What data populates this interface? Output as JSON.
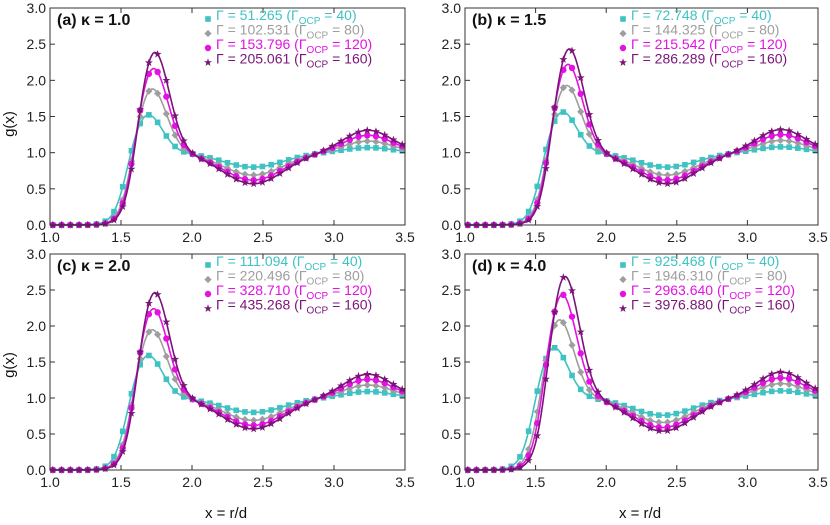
{
  "figure": {
    "ylabel": "g(x)",
    "xlabel": "x = r/d",
    "colors": [
      "#3EC2C2",
      "#9E9E9E",
      "#E312E3",
      "#7A1478"
    ],
    "markers": [
      "square",
      "diamond",
      "circle",
      "star"
    ]
  },
  "chart_data": [
    {
      "type": "line",
      "title": "(a) κ = 1.0",
      "xlim": [
        1.0,
        3.5
      ],
      "ylim": [
        0.0,
        3.0
      ],
      "xticks": [
        "1.0",
        "1.5",
        "2.0",
        "2.5",
        "3.0",
        "3.5"
      ],
      "yticks": [
        "0.0",
        "0.5",
        "1.0",
        "1.5",
        "2.0",
        "2.5",
        "3.0"
      ],
      "legend_position": "top-right",
      "series": [
        {
          "name": "Γ = 51.265 (Γ_OCP = 40)",
          "gamma": "51.265",
          "ocp": "40",
          "peak_x": 1.68,
          "peak_y": 1.56,
          "min_x": 2.43,
          "min_y": 0.8,
          "second_peak_y": 1.07
        },
        {
          "name": "Γ = 102.531 (Γ_OCP = 80)",
          "gamma": "102.531",
          "ocp": "80",
          "peak_x": 1.71,
          "peak_y": 1.93,
          "min_x": 2.43,
          "min_y": 0.69,
          "second_peak_y": 1.16
        },
        {
          "name": "Γ = 153.796 (Γ_OCP = 120)",
          "gamma": "153.796",
          "ocp": "120",
          "peak_x": 1.72,
          "peak_y": 2.22,
          "min_x": 2.43,
          "min_y": 0.62,
          "second_peak_y": 1.24
        },
        {
          "name": "Γ = 205.061 (Γ_OCP = 160)",
          "gamma": "205.061",
          "ocp": "160",
          "peak_x": 1.73,
          "peak_y": 2.45,
          "min_x": 2.43,
          "min_y": 0.57,
          "second_peak_y": 1.31
        }
      ]
    },
    {
      "type": "line",
      "title": "(b) κ = 1.5",
      "xlim": [
        1.0,
        3.5
      ],
      "ylim": [
        0.0,
        3.0
      ],
      "xticks": [
        "1.0",
        "1.5",
        "2.0",
        "2.5",
        "3.0",
        "3.5"
      ],
      "yticks": [
        "0.0",
        "0.5",
        "1.0",
        "1.5",
        "2.0",
        "2.5",
        "3.0"
      ],
      "legend_position": "top-right",
      "series": [
        {
          "name": "Γ = 72.748 (Γ_OCP = 40)",
          "gamma": "72.748",
          "ocp": "40",
          "peak_x": 1.68,
          "peak_y": 1.6,
          "min_x": 2.43,
          "min_y": 0.8,
          "second_peak_y": 1.08
        },
        {
          "name": "Γ = 144.325 (Γ_OCP = 80)",
          "gamma": "144.325",
          "ocp": "80",
          "peak_x": 1.71,
          "peak_y": 1.98,
          "min_x": 2.43,
          "min_y": 0.69,
          "second_peak_y": 1.17
        },
        {
          "name": "Γ = 215.542 (Γ_OCP = 120)",
          "gamma": "215.542",
          "ocp": "120",
          "peak_x": 1.72,
          "peak_y": 2.28,
          "min_x": 2.43,
          "min_y": 0.62,
          "second_peak_y": 1.25
        },
        {
          "name": "Γ = 286.289 (Γ_OCP = 160)",
          "gamma": "286.289",
          "ocp": "160",
          "peak_x": 1.73,
          "peak_y": 2.5,
          "min_x": 2.43,
          "min_y": 0.57,
          "second_peak_y": 1.32
        }
      ]
    },
    {
      "type": "line",
      "title": "(c) κ = 2.0",
      "xlim": [
        1.0,
        3.5
      ],
      "ylim": [
        0.0,
        3.0
      ],
      "xticks": [
        "1.0",
        "1.5",
        "2.0",
        "2.5",
        "3.0",
        "3.5"
      ],
      "yticks": [
        "0.0",
        "0.5",
        "1.0",
        "1.5",
        "2.0",
        "2.5",
        "3.0"
      ],
      "legend_position": "top-right",
      "series": [
        {
          "name": "Γ = 111.094 (Γ_OCP = 40)",
          "gamma": "111.094",
          "ocp": "40",
          "peak_x": 1.68,
          "peak_y": 1.63,
          "min_x": 2.43,
          "min_y": 0.8,
          "second_peak_y": 1.09
        },
        {
          "name": "Γ = 220.496 (Γ_OCP = 80)",
          "gamma": "220.496",
          "ocp": "80",
          "peak_x": 1.71,
          "peak_y": 2.0,
          "min_x": 2.43,
          "min_y": 0.69,
          "second_peak_y": 1.18
        },
        {
          "name": "Γ = 328.710 (Γ_OCP = 120)",
          "gamma": "328.710",
          "ocp": "120",
          "peak_x": 1.72,
          "peak_y": 2.3,
          "min_x": 2.43,
          "min_y": 0.62,
          "second_peak_y": 1.26
        },
        {
          "name": "Γ = 435.268 (Γ_OCP = 160)",
          "gamma": "435.268",
          "ocp": "160",
          "peak_x": 1.73,
          "peak_y": 2.53,
          "min_x": 2.43,
          "min_y": 0.57,
          "second_peak_y": 1.33
        }
      ]
    },
    {
      "type": "line",
      "title": "(d) κ = 4.0",
      "xlim": [
        1.0,
        3.5
      ],
      "ylim": [
        0.0,
        3.0
      ],
      "xticks": [
        "1.0",
        "1.5",
        "2.0",
        "2.5",
        "3.0",
        "3.5"
      ],
      "yticks": [
        "0.0",
        "0.5",
        "1.0",
        "1.5",
        "2.0",
        "2.5",
        "3.0"
      ],
      "legend_position": "top-right",
      "series": [
        {
          "name": "Γ = 925.468 (Γ_OCP = 40)",
          "gamma": "925.468",
          "ocp": "40",
          "peak_x": 1.62,
          "peak_y": 1.74,
          "min_x": 2.4,
          "min_y": 0.76,
          "second_peak_y": 1.1
        },
        {
          "name": "Γ = 1946.310 (Γ_OCP = 80)",
          "gamma": "1946.310",
          "ocp": "80",
          "peak_x": 1.66,
          "peak_y": 2.14,
          "min_x": 2.4,
          "min_y": 0.66,
          "second_peak_y": 1.2
        },
        {
          "name": "Γ = 2963.640 (Γ_OCP = 120)",
          "gamma": "2963.640",
          "ocp": "120",
          "peak_x": 1.68,
          "peak_y": 2.5,
          "min_x": 2.4,
          "min_y": 0.59,
          "second_peak_y": 1.28
        },
        {
          "name": "Γ = 3976.880 (Γ_OCP = 160)",
          "gamma": "3976.880",
          "ocp": "160",
          "peak_x": 1.7,
          "peak_y": 2.76,
          "min_x": 2.4,
          "min_y": 0.54,
          "second_peak_y": 1.36
        }
      ]
    }
  ]
}
